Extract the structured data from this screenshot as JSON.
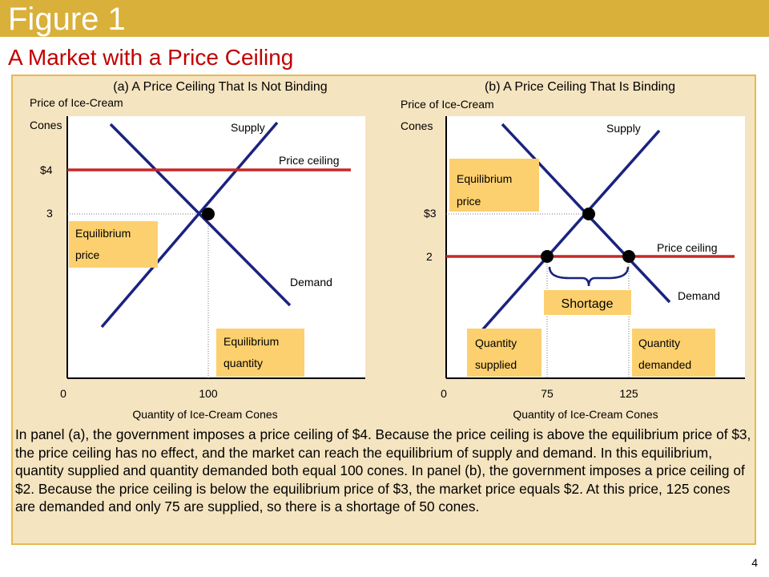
{
  "header": {
    "figure_label": "Figure 1",
    "title": "A Market with a Price Ceiling",
    "page_number": "4"
  },
  "panel_a": {
    "title": "(a) A Price Ceiling That Is Not Binding",
    "ylabel_line1": "Price of Ice-Cream",
    "ylabel_line2": "Cones",
    "xlabel": "Quantity of Ice-Cream Cones",
    "y_ticks": [
      "$4",
      "3"
    ],
    "x_ticks": [
      "0",
      "100"
    ],
    "supply_label": "Supply",
    "demand_label": "Demand",
    "ceiling_label": "Price ceiling",
    "eq_price_box": [
      "Equilibrium",
      "price"
    ],
    "eq_qty_box": [
      "Equilibrium",
      "quantity"
    ]
  },
  "panel_b": {
    "title": "(b) A Price Ceiling That Is Binding",
    "ylabel_line1": "Price of Ice-Cream",
    "ylabel_line2": "Cones",
    "xlabel": "Quantity of Ice-Cream Cones",
    "y_ticks": [
      "$3",
      "2"
    ],
    "x_ticks": [
      "0",
      "75",
      "125"
    ],
    "supply_label": "Supply",
    "demand_label": "Demand",
    "ceiling_label": "Price ceiling",
    "eq_price_box": [
      "Equilibrium",
      "price"
    ],
    "shortage_label": "Shortage",
    "qs_box": [
      "Quantity",
      "supplied"
    ],
    "qd_box": [
      "Quantity",
      "demanded"
    ]
  },
  "caption": "In panel (a), the government imposes a price ceiling of $4. Because the price ceiling is above the equilibrium price of $3, the price ceiling has no effect, and the market can reach the equilibrium of supply and demand. In this equilibrium, quantity supplied and quantity demanded both equal 100 cones. In panel (b), the government imposes a price ceiling of $2. Because the price ceiling is below the equilibrium price of $3, the market price equals $2. At this price, 125 cones are demanded and only 75 are supplied, so there is a shortage of 50 cones.",
  "colors": {
    "header_bar": "#d9b03a",
    "title_red": "#c00000",
    "panel_bg": "#f5e4c0",
    "panel_border": "#e8b850",
    "label_box": "#fcd06e",
    "curve": "#1a237e",
    "ceiling": "#c62828"
  }
}
